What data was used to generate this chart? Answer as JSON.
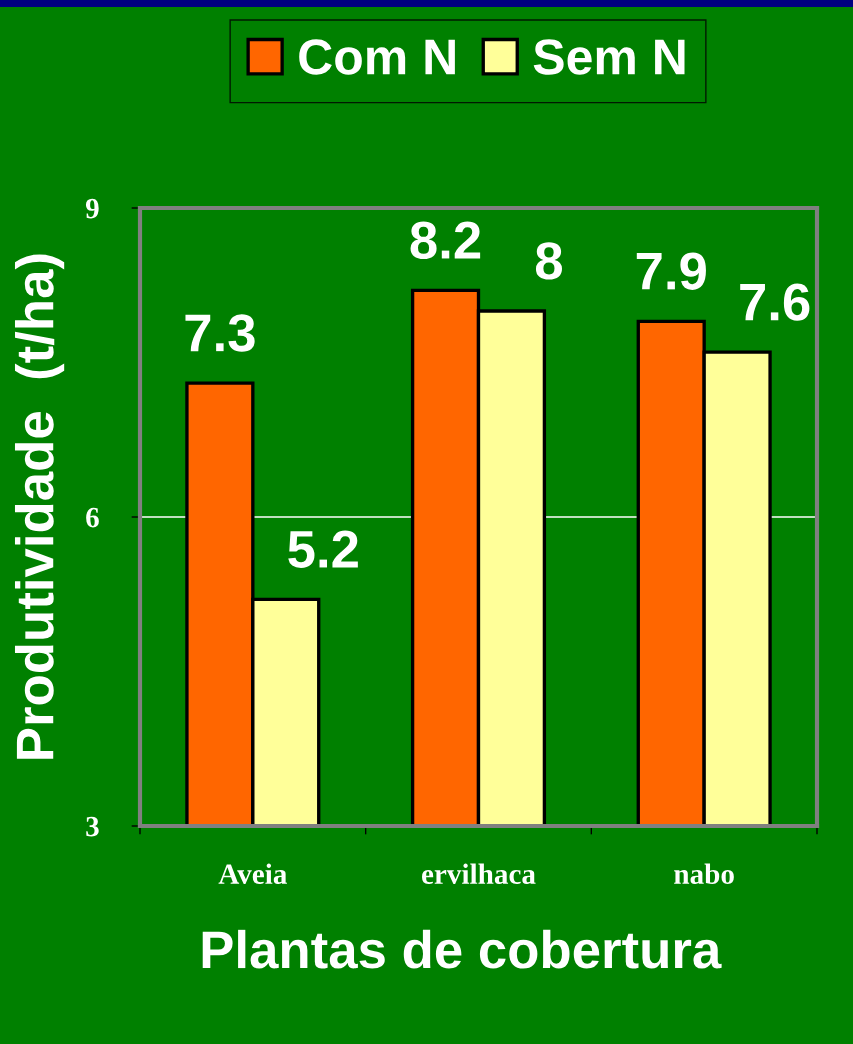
{
  "chart_data": {
    "type": "bar",
    "xlabel": "Plantas de cobertura",
    "ylabel": "Produtividade  (t/ha)",
    "categories": [
      "Aveia",
      "ervilhaca",
      "nabo"
    ],
    "series": [
      {
        "name": "Com N",
        "color": "#ff6600",
        "values": [
          7.3,
          8.2,
          7.9
        ]
      },
      {
        "name": "Sem N",
        "color": "#ffff99",
        "values": [
          5.2,
          8,
          7.6
        ]
      }
    ],
    "ylim": [
      3,
      9
    ],
    "yticks": [
      3,
      6,
      9
    ],
    "grid": "y",
    "legend": "top",
    "data_labels": true
  }
}
